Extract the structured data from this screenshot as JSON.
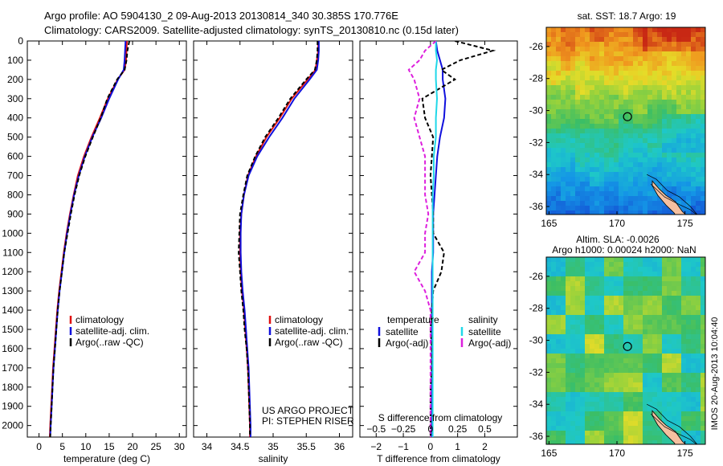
{
  "header": {
    "title_line1": "Argo profile: AO 5904130_2 09-Aug-2013 20130814_340 30.385S 170.776E",
    "title_line2": "Climatology: CARS2009. Satellite-adjusted climatology: synTS_20130810.nc (0.15d later)"
  },
  "colors": {
    "climatology": "#e01010",
    "satellite": "#1010dd",
    "argo": "#000000",
    "sal_satellite": "#20d8e8",
    "sal_argo": "#dd20dd"
  },
  "side_labels": {
    "project": "US ARGO PROJECT",
    "pi": "PI: STEPHEN RISER",
    "stamp": "IMOS 20-Aug-2013 10:04:40"
  },
  "chart_data": [
    {
      "type": "line",
      "id": "temperature",
      "xlabel": "temperature (deg C)",
      "ylabel": "",
      "xlim": [
        -2.5,
        31.5
      ],
      "ylim": [
        2060,
        0
      ],
      "xticks": [
        0,
        5,
        10,
        15,
        20,
        25,
        30
      ],
      "xtick_labels": [
        "0",
        "5",
        "10",
        "15",
        "20",
        "25",
        "30"
      ],
      "yticks": [
        0,
        100,
        200,
        300,
        400,
        500,
        600,
        700,
        800,
        900,
        1000,
        1100,
        1200,
        1300,
        1400,
        1500,
        1600,
        1700,
        1800,
        1900,
        2000
      ],
      "ytick_labels": [
        "0",
        "100",
        "200",
        "300",
        "400",
        "500",
        "600",
        "700",
        "800",
        "900",
        "1000",
        "1100",
        "1200",
        "1300",
        "1400",
        "1500",
        "1600",
        "1700",
        "1800",
        "1900",
        "2000"
      ],
      "depth": [
        0,
        50,
        100,
        150,
        200,
        300,
        400,
        500,
        600,
        700,
        800,
        900,
        1000,
        1100,
        1200,
        1300,
        1400,
        1500,
        1600,
        1700,
        1800,
        1900,
        2000,
        2060
      ],
      "series": [
        {
          "name": "climatology",
          "values": [
            18.8,
            18.7,
            18.6,
            18.3,
            16.8,
            14.7,
            13.0,
            11.2,
            9.6,
            8.3,
            7.4,
            6.6,
            5.9,
            5.3,
            4.8,
            4.3,
            3.9,
            3.6,
            3.3,
            3.0,
            2.8,
            2.6,
            2.4,
            2.3
          ]
        },
        {
          "name": "satellite-adj. clim.",
          "values": [
            18.5,
            18.4,
            18.3,
            18.1,
            16.9,
            15.0,
            13.3,
            11.4,
            9.8,
            8.5,
            7.5,
            6.7,
            6.0,
            5.4,
            4.9,
            4.4,
            4.0,
            3.7,
            3.4,
            3.1,
            2.9,
            2.7,
            2.5,
            2.4
          ]
        },
        {
          "name": "Argo(..raw -QC)",
          "values": [
            19.3,
            18.9,
            18.7,
            18.3,
            16.7,
            14.6,
            13.2,
            11.5,
            9.9,
            8.6,
            7.6,
            6.8,
            6.1,
            5.4,
            4.9,
            4.4,
            4.0,
            3.7,
            3.4,
            3.1,
            2.9,
            2.7,
            2.5,
            2.4
          ]
        }
      ]
    },
    {
      "type": "line",
      "id": "salinity",
      "xlabel": "salinity",
      "ylabel": "",
      "xlim": [
        33.8,
        36.2
      ],
      "ylim": [
        2060,
        0
      ],
      "xticks": [
        34,
        34.5,
        35,
        35.5,
        36
      ],
      "xtick_labels": [
        "34",
        "34.5",
        "35",
        "35.5",
        "36"
      ],
      "depth": [
        0,
        50,
        100,
        150,
        200,
        300,
        400,
        500,
        600,
        700,
        800,
        900,
        1000,
        1100,
        1200,
        1300,
        1400,
        1500,
        1600,
        1700,
        1800,
        1900,
        2000,
        2060
      ],
      "series": [
        {
          "name": "climatology",
          "values": [
            35.68,
            35.68,
            35.66,
            35.64,
            35.52,
            35.28,
            35.1,
            34.9,
            34.74,
            34.62,
            34.56,
            34.52,
            34.5,
            34.5,
            34.51,
            34.53,
            34.56,
            34.58,
            34.6,
            34.62,
            34.63,
            34.64,
            34.65,
            34.65
          ]
        },
        {
          "name": "satellite-adj. clim.",
          "values": [
            35.69,
            35.69,
            35.68,
            35.66,
            35.55,
            35.32,
            35.14,
            34.94,
            34.76,
            34.63,
            34.56,
            34.52,
            34.51,
            34.51,
            34.52,
            34.54,
            34.57,
            34.59,
            34.61,
            34.63,
            34.64,
            34.65,
            34.66,
            34.66
          ]
        },
        {
          "name": "Argo(..raw -QC)",
          "values": [
            35.67,
            35.67,
            35.66,
            35.63,
            35.5,
            35.26,
            35.08,
            34.88,
            34.73,
            34.61,
            34.55,
            34.5,
            34.49,
            34.48,
            34.5,
            34.52,
            34.55,
            34.57,
            34.6,
            34.62,
            34.63,
            34.64,
            34.65,
            34.65
          ]
        }
      ]
    },
    {
      "type": "line",
      "id": "difference",
      "title_top": "S difference from climatology",
      "xlabel": "T difference from climatology",
      "ylabel": "",
      "xlim": [
        -2.6,
        3.2
      ],
      "ylim": [
        2060,
        0
      ],
      "xticks": [
        -2,
        -1,
        0,
        1,
        2
      ],
      "xtick_labels": [
        "−2",
        "−1",
        "0",
        "1",
        "2"
      ],
      "top_ticks": [
        "−0.5",
        "−0.25",
        "0",
        "0.25",
        "0.5"
      ],
      "legend_headers": [
        "temperature",
        "salinity"
      ],
      "depth": [
        0,
        50,
        100,
        150,
        200,
        300,
        400,
        500,
        600,
        700,
        800,
        900,
        1000,
        1100,
        1200,
        1300,
        1400,
        1500,
        1600,
        1700,
        1800,
        1900,
        2000,
        2060
      ],
      "series": [
        {
          "name": "satellite",
          "group": "temperature",
          "values": [
            0.2,
            0.25,
            0.35,
            0.45,
            0.45,
            0.55,
            0.5,
            0.35,
            0.25,
            0.2,
            0.15,
            0.1,
            0.1,
            0.1,
            0.05,
            0.05,
            0.05,
            0.05,
            0.05,
            0.05,
            0.05,
            0.05,
            0.05,
            0.05
          ]
        },
        {
          "name": "Argo(-adj)",
          "group": "temperature",
          "values": [
            0.9,
            2.3,
            1.1,
            0.4,
            0.9,
            -0.3,
            -0.2,
            0.1,
            0.05,
            0.0,
            0.05,
            0.1,
            0.1,
            0.5,
            0.4,
            0.1,
            0.05,
            0.0,
            0.05,
            0.05,
            0.0,
            0.0,
            0.0,
            0.0
          ]
        },
        {
          "name": "satellite",
          "group": "salinity",
          "values": [
            0.05,
            0.05,
            0.06,
            0.05,
            0.05,
            0.06,
            0.05,
            0.05,
            0.03,
            0.03,
            0.02,
            0.02,
            0.02,
            0.02,
            0.02,
            0.02,
            0.02,
            0.02,
            0.02,
            0.02,
            0.02,
            0.02,
            0.02,
            0.02
          ]
        },
        {
          "name": "Argo(-adj)",
          "group": "salinity",
          "values": [
            0.05,
            -0.05,
            -0.1,
            -0.2,
            -0.15,
            -0.1,
            -0.15,
            -0.1,
            -0.05,
            -0.05,
            -0.05,
            -0.02,
            -0.05,
            -0.05,
            -0.15,
            -0.05,
            0.0,
            0.0,
            0.0,
            0.0,
            0.0,
            0.0,
            0.0,
            0.0
          ]
        }
      ]
    },
    {
      "type": "heatmap",
      "id": "sst_map",
      "title": "sat. SST: 18.7 Argo: 19",
      "xlim": [
        164.8,
        176.5
      ],
      "ylim": [
        -36.5,
        -24.8
      ],
      "xticks": [
        165,
        170,
        175
      ],
      "xtick_labels": [
        "165",
        "170",
        "175"
      ],
      "yticks": [
        -26,
        -28,
        -30,
        -32,
        -34,
        -36
      ],
      "ytick_labels": [
        "-26",
        "-28",
        "-30",
        "-32",
        "-34",
        "-36"
      ],
      "marker": {
        "lon": 170.776,
        "lat": -30.385
      }
    },
    {
      "type": "heatmap",
      "id": "sla_map",
      "title_line1": "Altim. SLA: -0.0026",
      "title_line2": "Argo h1000: 0.00024 h2000: NaN",
      "xlim": [
        164.8,
        176.5
      ],
      "ylim": [
        -36.5,
        -24.8
      ],
      "xticks": [
        165,
        170,
        175
      ],
      "xtick_labels": [
        "165",
        "170",
        "175"
      ],
      "yticks": [
        -26,
        -28,
        -30,
        -32,
        -34,
        -36
      ],
      "ytick_labels": [
        "-26",
        "-28",
        "-30",
        "-32",
        "-34",
        "-36"
      ],
      "marker": {
        "lon": 170.776,
        "lat": -30.385
      }
    }
  ]
}
